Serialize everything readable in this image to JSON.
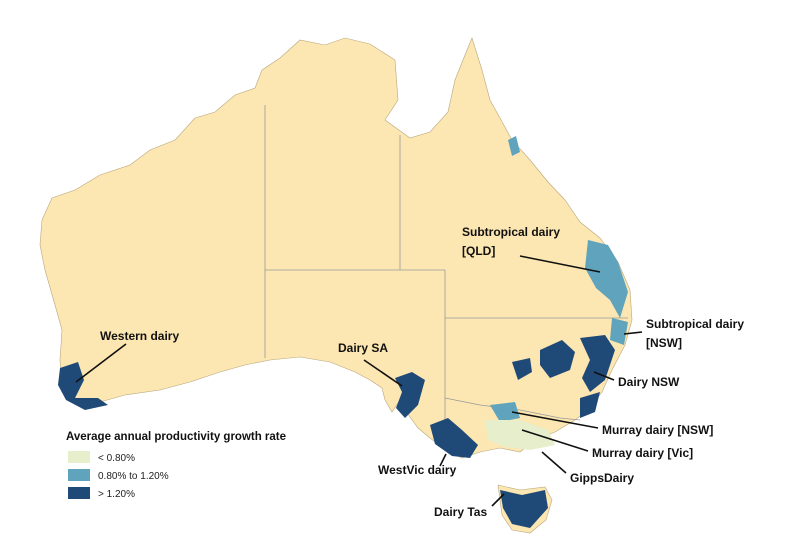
{
  "legend": {
    "title": "Average annual productivity growth rate",
    "items": [
      {
        "label": "< 0.80%",
        "color": "#e6eecb"
      },
      {
        "label": "0.80% to 1.20%",
        "color": "#5fa3bd"
      },
      {
        "label": "> 1.20%",
        "color": "#1f4a78"
      }
    ]
  },
  "land_color": "#fce6b1",
  "regions": [
    {
      "lines": [
        "Western dairy"
      ]
    },
    {
      "lines": [
        "Dairy SA"
      ]
    },
    {
      "lines": [
        "Subtropical dairy",
        "[QLD]"
      ]
    },
    {
      "lines": [
        "Subtropical dairy",
        "[NSW]"
      ]
    },
    {
      "lines": [
        "Dairy NSW"
      ]
    },
    {
      "lines": [
        "Murray dairy [NSW]"
      ]
    },
    {
      "lines": [
        "Murray dairy [Vic]"
      ]
    },
    {
      "lines": [
        "GippsDairy"
      ]
    },
    {
      "lines": [
        "WestVic dairy"
      ]
    },
    {
      "lines": [
        "Dairy Tas"
      ]
    }
  ]
}
